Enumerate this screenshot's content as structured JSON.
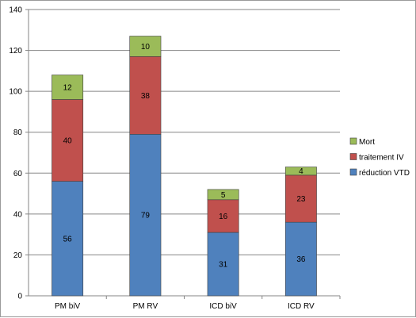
{
  "chart_data": {
    "type": "bar",
    "stacked": true,
    "categories": [
      "PM biV",
      "PM  RV",
      "ICD biV",
      "ICD RV"
    ],
    "series": [
      {
        "name": "réduction VTD",
        "values": [
          56,
          79,
          31,
          36
        ],
        "color": "#4f81bd"
      },
      {
        "name": "traitement IV",
        "values": [
          40,
          38,
          16,
          23
        ],
        "color": "#c0504d"
      },
      {
        "name": "Mort",
        "values": [
          12,
          10,
          5,
          4
        ],
        "color": "#9bbb59"
      }
    ],
    "title": "",
    "xlabel": "",
    "ylabel": "",
    "ylim": [
      0,
      140
    ],
    "yticks": [
      0,
      20,
      40,
      60,
      80,
      100,
      120,
      140
    ],
    "grid": true,
    "legend_position": "right",
    "legend_order": [
      "Mort",
      "traitement IV",
      "réduction VTD"
    ]
  }
}
